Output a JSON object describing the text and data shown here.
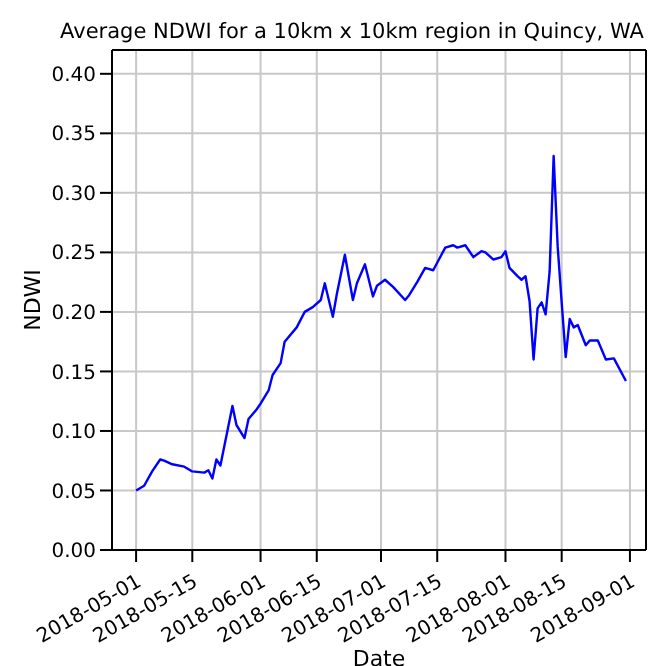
{
  "chart_data": {
    "type": "line",
    "title": "Average NDWI for a 10km x 10km region in Quincy, WA",
    "xlabel": "Date",
    "ylabel": "NDWI",
    "x": [
      "2018-05-01",
      "2018-05-03",
      "2018-05-05",
      "2018-05-07",
      "2018-05-08",
      "2018-05-10",
      "2018-05-13",
      "2018-05-15",
      "2018-05-18",
      "2018-05-19",
      "2018-05-20",
      "2018-05-21",
      "2018-05-22",
      "2018-05-25",
      "2018-05-26",
      "2018-05-28",
      "2018-05-29",
      "2018-05-31",
      "2018-06-01",
      "2018-06-03",
      "2018-06-04",
      "2018-06-06",
      "2018-06-07",
      "2018-06-10",
      "2018-06-12",
      "2018-06-14",
      "2018-06-16",
      "2018-06-17",
      "2018-06-19",
      "2018-06-20",
      "2018-06-22",
      "2018-06-24",
      "2018-06-25",
      "2018-06-27",
      "2018-06-29",
      "2018-06-30",
      "2018-07-02",
      "2018-07-04",
      "2018-07-07",
      "2018-07-08",
      "2018-07-10",
      "2018-07-12",
      "2018-07-14",
      "2018-07-17",
      "2018-07-19",
      "2018-07-20",
      "2018-07-22",
      "2018-07-24",
      "2018-07-26",
      "2018-07-27",
      "2018-07-29",
      "2018-07-31",
      "2018-08-01",
      "2018-08-02",
      "2018-08-04",
      "2018-08-05",
      "2018-08-06",
      "2018-08-07",
      "2018-08-08",
      "2018-08-09",
      "2018-08-10",
      "2018-08-11",
      "2018-08-12",
      "2018-08-13",
      "2018-08-14",
      "2018-08-15",
      "2018-08-16",
      "2018-08-17",
      "2018-08-18",
      "2018-08-19",
      "2018-08-21",
      "2018-08-22",
      "2018-08-24",
      "2018-08-26",
      "2018-08-28",
      "2018-08-31"
    ],
    "series": [
      {
        "color": "#0000ff",
        "values": [
          0.05,
          0.054,
          0.066,
          0.076,
          0.075,
          0.072,
          0.07,
          0.066,
          0.065,
          0.067,
          0.06,
          0.076,
          0.071,
          0.121,
          0.105,
          0.094,
          0.11,
          0.118,
          0.123,
          0.134,
          0.147,
          0.157,
          0.175,
          0.187,
          0.2,
          0.204,
          0.21,
          0.224,
          0.196,
          0.215,
          0.248,
          0.21,
          0.224,
          0.24,
          0.213,
          0.222,
          0.227,
          0.221,
          0.21,
          0.214,
          0.225,
          0.237,
          0.235,
          0.254,
          0.256,
          0.254,
          0.256,
          0.246,
          0.251,
          0.25,
          0.244,
          0.246,
          0.251,
          0.237,
          0.23,
          0.227,
          0.23,
          0.209,
          0.16,
          0.203,
          0.208,
          0.198,
          0.234,
          0.331,
          0.255,
          0.208,
          0.162,
          0.194,
          0.187,
          0.189,
          0.172,
          0.176,
          0.176,
          0.16,
          0.161,
          0.142
        ]
      }
    ],
    "xlim": [
      "2018-04-25",
      "2018-09-05"
    ],
    "xticks": [
      "2018-05-01",
      "2018-05-15",
      "2018-06-01",
      "2018-06-15",
      "2018-07-01",
      "2018-07-15",
      "2018-08-01",
      "2018-08-15",
      "2018-09-01"
    ],
    "ylim": [
      0,
      0.42
    ],
    "yticks": [
      {
        "value": 0,
        "label": "0.00"
      },
      {
        "value": 0.05,
        "label": "0.05"
      },
      {
        "value": 0.1,
        "label": "0.10"
      },
      {
        "value": 0.15,
        "label": "0.15"
      },
      {
        "value": 0.2,
        "label": "0.20"
      },
      {
        "value": 0.25,
        "label": "0.25"
      },
      {
        "value": 0.3,
        "label": "0.30"
      },
      {
        "value": 0.35,
        "label": "0.35"
      },
      {
        "value": 0.4,
        "label": "0.40"
      }
    ],
    "grid": true,
    "marker": "none",
    "line_style": "solid",
    "legend": false
  }
}
